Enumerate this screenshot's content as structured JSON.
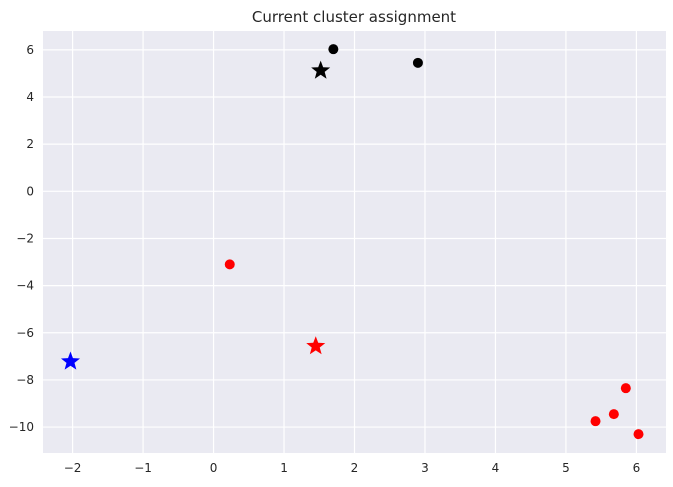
{
  "chart_data": {
    "type": "scatter",
    "title": "Current cluster assignment",
    "xlabel": "",
    "ylabel": "",
    "xlim": [
      -2.42,
      6.42
    ],
    "ylim": [
      -11.1,
      6.8
    ],
    "xticks": [
      -2,
      -1,
      0,
      1,
      2,
      3,
      4,
      5,
      6
    ],
    "yticks": [
      6,
      4,
      2,
      0,
      -2,
      -4,
      -6,
      -8,
      -10
    ],
    "grid": true,
    "background": "#eaeaf2",
    "colors": {
      "red": "#ff0000",
      "black": "#000000",
      "blue": "#0000ff",
      "grid": "#ffffff"
    },
    "series": [
      {
        "color": "red",
        "marker": "circle",
        "points": [
          {
            "x": 0.23,
            "y": -3.1
          },
          {
            "x": 5.42,
            "y": -9.75
          },
          {
            "x": 5.68,
            "y": -9.45
          },
          {
            "x": 5.85,
            "y": -8.35
          },
          {
            "x": 6.03,
            "y": -10.3
          }
        ]
      },
      {
        "color": "black",
        "marker": "circle",
        "points": [
          {
            "x": 1.7,
            "y": 6.03
          },
          {
            "x": 2.9,
            "y": 5.45
          }
        ]
      },
      {
        "color": "black",
        "marker": "star",
        "points": [
          {
            "x": 1.52,
            "y": 5.12
          }
        ]
      },
      {
        "color": "red",
        "marker": "star",
        "points": [
          {
            "x": 1.45,
            "y": -6.57
          }
        ]
      },
      {
        "color": "blue",
        "marker": "star",
        "points": [
          {
            "x": -2.03,
            "y": -7.22
          }
        ]
      }
    ]
  }
}
